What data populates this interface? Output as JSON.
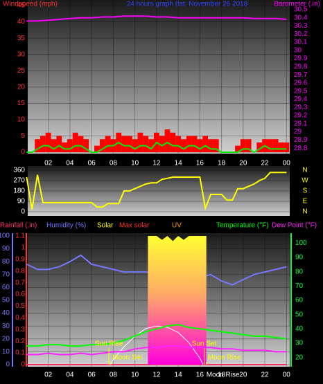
{
  "chart_data": [
    {
      "type": "combo",
      "title": "24 hours graph (lat: November 26 2018",
      "ylabel": "Windspeed (mph)",
      "y2label": "Barometer (.in)",
      "ycolor": "#ff3333",
      "y2color": "#ff00ff",
      "titlecolor": "#3344ff",
      "xlim": [
        0.1,
        24.3
      ],
      "xticks": [
        {
          "value": 2,
          "label": "02"
        },
        {
          "value": 4,
          "label": "04"
        },
        {
          "value": 6,
          "label": "06"
        },
        {
          "value": 8,
          "label": "08"
        },
        10,
        12,
        14,
        16,
        18,
        20,
        22,
        {
          "value": 24,
          "label": "00"
        }
      ],
      "ylim": [
        0,
        45
      ],
      "yticks": [
        0,
        5,
        10,
        15,
        20,
        25,
        30,
        35,
        40,
        45
      ],
      "y2lim": [
        28.75,
        30.55
      ],
      "y2ticks": [
        28.8,
        28.9,
        29,
        29.1,
        29.2,
        29.3,
        29.4,
        29.5,
        29.6,
        29.7,
        29.8,
        29.9,
        30,
        30.1,
        30.2,
        30.3,
        30.4,
        30.5
      ],
      "grid": true,
      "x": [
        0,
        0.5,
        1,
        1.5,
        2,
        2.5,
        3,
        3.5,
        4,
        4.5,
        5,
        5.5,
        6,
        6.5,
        7,
        7.5,
        8,
        8.5,
        9,
        9.5,
        10,
        10.5,
        11,
        11.5,
        12,
        12.5,
        13,
        13.5,
        14,
        14.5,
        15,
        15.5,
        16,
        16.5,
        17,
        17.5,
        18,
        18.5,
        19,
        19.5,
        20,
        20.5,
        21,
        21.5,
        22,
        22.5,
        23,
        23.5,
        24
      ],
      "series": [
        {
          "type": "bar",
          "color": "#ff0000",
          "values": [
            0,
            0,
            4,
            5,
            6,
            4,
            5,
            3,
            4,
            6,
            5,
            4,
            0,
            2,
            4,
            5,
            4,
            6,
            5,
            5,
            4,
            6,
            5,
            4,
            6,
            5,
            7,
            6,
            5,
            4,
            5,
            5,
            4,
            5,
            4,
            4,
            0,
            0,
            0,
            2,
            4,
            4,
            0,
            3,
            4,
            4,
            4,
            3,
            3
          ]
        },
        {
          "type": "line",
          "color": "#00ee00",
          "values": [
            0,
            0,
            1,
            2,
            2,
            1,
            2,
            1,
            1,
            2,
            2,
            1,
            0,
            0,
            1,
            2,
            2,
            3,
            2,
            2,
            1,
            2,
            2,
            1,
            3,
            2,
            3,
            2,
            2,
            1,
            2,
            2,
            1,
            2,
            1,
            1,
            0,
            0,
            0,
            0,
            1,
            1,
            0,
            1,
            2,
            1,
            1,
            1,
            1
          ]
        },
        {
          "type": "line",
          "axis": "y2",
          "color": "#ff00ff",
          "x": [
            0,
            1,
            2,
            3,
            4,
            5,
            6,
            7,
            8,
            9,
            10,
            11,
            12,
            13,
            14,
            15,
            16,
            17,
            18,
            19,
            20,
            21,
            22,
            23,
            24
          ],
          "values": [
            30.36,
            30.36,
            30.37,
            30.38,
            30.39,
            30.4,
            30.4,
            30.41,
            30.41,
            30.42,
            30.42,
            30.42,
            30.41,
            30.41,
            30.4,
            30.4,
            30.4,
            30.4,
            30.4,
            30.4,
            30.4,
            30.39,
            30.39,
            30.39,
            30.38
          ]
        }
      ]
    },
    {
      "type": "combo",
      "ycolor": "#ffffff",
      "y2color": "#ffff00",
      "xlim": [
        0.1,
        24.3
      ],
      "ylim": [
        0,
        360
      ],
      "yticks": [
        0,
        90,
        180,
        270,
        360
      ],
      "y2lim": [
        0,
        360
      ],
      "y2ticks": [
        {
          "value": 0,
          "label": "N"
        },
        {
          "value": 90,
          "label": "E"
        },
        {
          "value": 180,
          "label": "S"
        },
        {
          "value": 270,
          "label": "W"
        },
        {
          "value": 360,
          "label": "N"
        }
      ],
      "grid": true,
      "x": [
        0,
        0.5,
        1,
        1.5,
        2,
        2.5,
        3,
        3.5,
        4,
        4.5,
        5,
        5.5,
        6,
        6.5,
        7,
        7.5,
        8,
        8.5,
        9,
        9.5,
        10,
        10.5,
        11,
        11.5,
        12,
        12.5,
        13,
        13.5,
        14,
        14.5,
        15,
        15.5,
        16,
        16.5,
        17,
        17.5,
        18,
        18.5,
        19,
        19.5,
        20,
        20.5,
        21,
        21.5,
        22,
        22.5,
        23,
        23.5,
        24
      ],
      "series": [
        {
          "type": "line",
          "color": "#ffff00",
          "values": [
            300,
            20,
            320,
            80,
            80,
            80,
            80,
            80,
            80,
            80,
            80,
            80,
            80,
            40,
            40,
            70,
            70,
            70,
            180,
            180,
            200,
            220,
            240,
            250,
            250,
            280,
            290,
            300,
            300,
            300,
            300,
            300,
            300,
            30,
            150,
            150,
            150,
            100,
            100,
            200,
            200,
            220,
            240,
            270,
            290,
            340,
            340,
            340,
            340
          ]
        }
      ]
    },
    {
      "type": "combo",
      "ycolor": "#7777ff",
      "y2color": "#00ff44",
      "y3color": "#ff3333",
      "xlim": [
        0.1,
        24.3
      ],
      "xticks": [
        {
          "value": 2,
          "label": "02"
        },
        {
          "value": 4,
          "label": "04"
        },
        {
          "value": 6,
          "label": "06"
        },
        {
          "value": 8,
          "label": "08"
        },
        10,
        12,
        14,
        16,
        18,
        20,
        22,
        {
          "value": 24,
          "label": "00"
        }
      ],
      "ylim": [
        0,
        100
      ],
      "yticks": [
        0,
        10,
        20,
        30,
        40,
        50,
        60,
        70,
        80,
        90,
        100
      ],
      "y3lim": [
        0,
        1.1
      ],
      "y3ticks": [
        0,
        0.1,
        0.2,
        0.3,
        0.4,
        0.5,
        0.6,
        0.7,
        0.8,
        0.9,
        1,
        1.1
      ],
      "y2lim": [
        15,
        105
      ],
      "y2ticks": [
        20,
        30,
        40,
        50,
        60,
        70,
        80,
        90,
        100
      ],
      "grid": true,
      "x": [
        0,
        1,
        2,
        3,
        4,
        5,
        6,
        7,
        8,
        9,
        10,
        11,
        12,
        13,
        14,
        15,
        16,
        17,
        18,
        19,
        20,
        21,
        22,
        23,
        24
      ],
      "series": [
        {
          "name": "Rainfall (.in)",
          "type": "line",
          "axis": "y3",
          "color": "#ff3366",
          "values": [
            0,
            0,
            0,
            0,
            0,
            0,
            0,
            0,
            0,
            0,
            0,
            0,
            0,
            0,
            0,
            0,
            0,
            0,
            0,
            0,
            0,
            0,
            0,
            0,
            0
          ]
        },
        {
          "name": "Humidity (%)",
          "type": "line",
          "color": "#7777ff",
          "values": [
            78,
            74,
            74,
            76,
            80,
            85,
            78,
            76,
            74,
            72,
            72,
            72,
            70,
            68,
            66,
            66,
            68,
            70,
            65,
            62,
            66,
            70,
            72,
            74,
            76
          ]
        },
        {
          "name": "Solar",
          "type": "area",
          "color": "#ffff00",
          "x": [
            11.2,
            12,
            12.5,
            13,
            13.5,
            14,
            14.5,
            15,
            16,
            16.6
          ],
          "values": [
            100,
            100,
            97,
            100,
            96,
            100,
            97,
            100,
            100,
            100
          ]
        },
        {
          "name": "Max solar",
          "type": "line",
          "color": "#ff3333",
          "stroke": "#ffffff",
          "x": [
            7.7,
            8,
            9,
            10,
            11,
            12,
            13,
            14,
            15,
            16,
            16.3
          ],
          "values": [
            0,
            4,
            14,
            22,
            28,
            30,
            29,
            25,
            17,
            5,
            0
          ]
        },
        {
          "name": "UV",
          "type": "line",
          "color": "#ff9900",
          "x": [],
          "values": []
        },
        {
          "name": "Temperature (°F)",
          "type": "line",
          "axis": "y2",
          "color": "#00ff00",
          "values": [
            28,
            28,
            29,
            29,
            28,
            28,
            29,
            29,
            30,
            32,
            35,
            38,
            40,
            42,
            43,
            41,
            40,
            39,
            38,
            37,
            36,
            35,
            35,
            34,
            33
          ]
        },
        {
          "name": "Dew Point (°F)",
          "type": "line",
          "axis": "y2",
          "color": "#ff22ff",
          "values": [
            22,
            22,
            23,
            22,
            22,
            23,
            22,
            23,
            24,
            24,
            26,
            27,
            27,
            28,
            28,
            27,
            27,
            27,
            26,
            26,
            25,
            25,
            25,
            24,
            24
          ]
        }
      ],
      "annotations": [
        {
          "text": "Sun Rise",
          "x": 7.6
        },
        {
          "text": "Moon Set",
          "x": 7.8
        },
        {
          "text": "Sun Set",
          "x": 16.4
        },
        {
          "text": "Moon Rise",
          "x": 16.6
        },
        {
          "text": "Moon Rise",
          "x": 16.6
        }
      ]
    }
  ]
}
